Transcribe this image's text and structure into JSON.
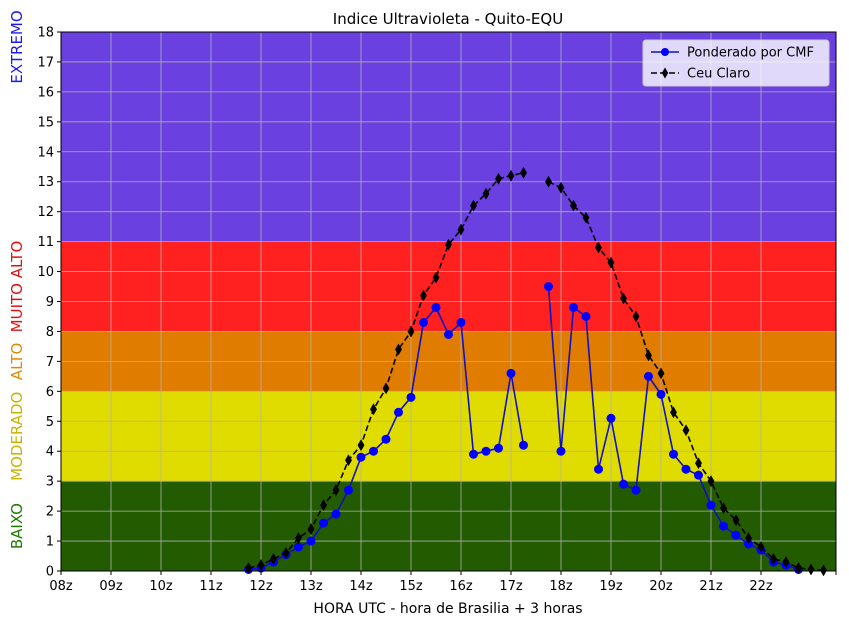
{
  "chart_data": {
    "type": "line",
    "title": "Indice Ultravioleta - Quito-EQU",
    "xlabel": "HORA UTC - hora de Brasilia + 3 horas",
    "ylabel": "",
    "xlim": [
      8,
      23.5
    ],
    "ylim": [
      0,
      18
    ],
    "x_ticks": [
      8,
      9,
      10,
      11,
      12,
      13,
      14,
      15,
      16,
      17,
      18,
      19,
      20,
      21,
      22,
      23.5
    ],
    "x_tick_labels": [
      "08z",
      "09z",
      "10z",
      "11z",
      "12z",
      "13z",
      "14z",
      "15z",
      "16z",
      "17z",
      "18z",
      "19z",
      "20z",
      "21z",
      "22z",
      ""
    ],
    "y_ticks": [
      0,
      1,
      2,
      3,
      4,
      5,
      6,
      7,
      8,
      9,
      10,
      11,
      12,
      13,
      14,
      15,
      16,
      17,
      18
    ],
    "y_tick_labels": [
      "0",
      "1",
      "2",
      "3",
      "4",
      "5",
      "6",
      "7",
      "8",
      "9",
      "10",
      "11",
      "12",
      "13",
      "14",
      "15",
      "16",
      "17",
      "18"
    ],
    "grid": true,
    "legend_position": "top-right",
    "bands": [
      {
        "label": "BAIXO",
        "from": 0,
        "to": 3,
        "fill": "#225b00",
        "text_color": "#1f7a00"
      },
      {
        "label": "MODERADO",
        "from": 3,
        "to": 6,
        "fill": "#e0dc00",
        "text_color": "#c8b400"
      },
      {
        "label": "ALTO",
        "from": 6,
        "to": 8,
        "fill": "#e07c00",
        "text_color": "#e08a00"
      },
      {
        "label": "MUITO ALTO",
        "from": 8,
        "to": 11,
        "fill": "#ff2020",
        "text_color": "#e01010"
      },
      {
        "label": "EXTREMO",
        "from": 11,
        "to": 18,
        "fill": "#6a40e0",
        "text_color": "#1a1aee"
      }
    ],
    "series": [
      {
        "name": "Ponderado por CMF",
        "color": "#0000ff",
        "line_color": "#1010c0",
        "marker": "circle",
        "line_style": "solid",
        "segments": [
          {
            "x": [
              11.75,
              12.0,
              12.25,
              12.5,
              12.75,
              13.0,
              13.25,
              13.5,
              13.75,
              14.0,
              14.25,
              14.5,
              14.75,
              15.0,
              15.25,
              15.5,
              15.75,
              16.0,
              16.25,
              16.5,
              16.75,
              17.0,
              17.25
            ],
            "y": [
              0.05,
              0.1,
              0.3,
              0.55,
              0.8,
              1.0,
              1.6,
              1.9,
              2.7,
              3.8,
              4.0,
              4.4,
              5.3,
              5.8,
              8.3,
              8.8,
              7.9,
              8.3,
              3.9,
              4.0,
              4.1,
              6.6,
              4.2
            ]
          },
          {
            "x": [
              17.75,
              18.0,
              18.25,
              18.5,
              18.75,
              19.0,
              19.25,
              19.5,
              19.75,
              20.0,
              20.25,
              20.5,
              20.75,
              21.0,
              21.25,
              21.5,
              21.75,
              22.0,
              22.25,
              22.5,
              22.75
            ],
            "y": [
              9.5,
              4.0,
              8.8,
              8.5,
              3.4,
              5.1,
              2.9,
              2.7,
              6.5,
              5.9,
              3.9,
              3.4,
              3.2,
              2.2,
              1.5,
              1.2,
              0.9,
              0.7,
              0.3,
              0.2,
              0.05
            ]
          }
        ]
      },
      {
        "name": "Ceu Claro",
        "color": "#000000",
        "line_color": "#000000",
        "marker": "thin_diamond",
        "line_style": "dashed",
        "segments": [
          {
            "x": [
              11.75,
              12.0,
              12.25,
              12.5,
              12.75,
              13.0,
              13.25,
              13.5,
              13.75,
              14.0,
              14.25,
              14.5,
              14.75,
              15.0,
              15.25,
              15.5,
              15.75,
              16.0,
              16.25,
              16.5,
              16.75,
              17.0,
              17.25
            ],
            "y": [
              0.1,
              0.2,
              0.4,
              0.6,
              1.1,
              1.4,
              2.2,
              2.7,
              3.7,
              4.2,
              5.4,
              6.1,
              7.4,
              8.0,
              9.2,
              9.8,
              10.9,
              11.4,
              12.2,
              12.6,
              13.1,
              13.2,
              13.3
            ]
          },
          {
            "x": [
              17.75,
              18.0,
              18.25,
              18.5,
              18.75,
              19.0,
              19.25,
              19.5,
              19.75,
              20.0,
              20.25,
              20.5,
              20.75,
              21.0,
              21.25,
              21.5,
              21.75,
              22.0,
              22.25,
              22.5,
              22.75,
              23.0,
              23.25
            ],
            "y": [
              13.0,
              12.8,
              12.2,
              11.8,
              10.8,
              10.3,
              9.1,
              8.5,
              7.2,
              6.6,
              5.3,
              4.7,
              3.6,
              3.0,
              2.1,
              1.7,
              1.1,
              0.8,
              0.4,
              0.3,
              0.1,
              0.05,
              0.02
            ]
          }
        ]
      }
    ]
  }
}
